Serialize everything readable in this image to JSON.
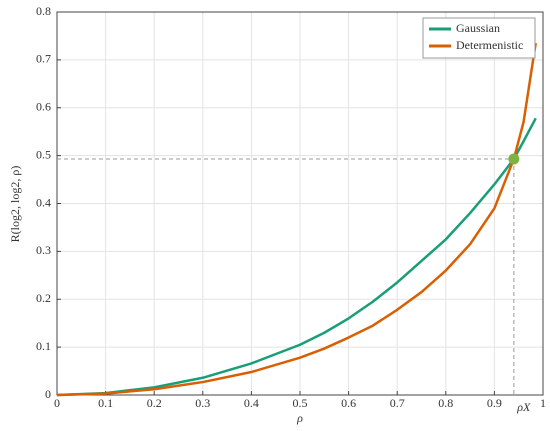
{
  "chart_data": {
    "type": "line",
    "xlabel": "ρ",
    "ylabel": "R(log2, log2, ρ)",
    "x": [
      0,
      0.1,
      0.2,
      0.3,
      0.4,
      0.5,
      0.55,
      0.6,
      0.65,
      0.7,
      0.75,
      0.8,
      0.85,
      0.9,
      0.94,
      0.96,
      0.985
    ],
    "series": [
      {
        "name": "Gaussian",
        "color": "#1a9e77",
        "values": [
          0,
          0.004,
          0.016,
          0.036,
          0.066,
          0.105,
          0.13,
          0.16,
          0.195,
          0.235,
          0.28,
          0.325,
          0.38,
          0.44,
          0.493,
          0.53,
          0.578
        ]
      },
      {
        "name": "Determenistic",
        "color": "#d95f02",
        "values": [
          0,
          0.003,
          0.012,
          0.027,
          0.048,
          0.078,
          0.097,
          0.12,
          0.145,
          0.178,
          0.215,
          0.26,
          0.315,
          0.39,
          0.493,
          0.57,
          0.735
        ]
      }
    ],
    "marker": {
      "x": 0.94,
      "y": 0.493,
      "label": "ρX",
      "color": "#7cb342"
    },
    "xlim": [
      0,
      1
    ],
    "xticks": [
      0,
      0.1,
      0.2,
      0.3,
      0.4,
      0.5,
      0.6,
      0.7,
      0.8,
      0.9,
      1
    ],
    "ylim": [
      0,
      0.8
    ],
    "yticks": [
      0,
      0.1,
      0.2,
      0.3,
      0.4,
      0.5,
      0.6,
      0.7,
      0.8
    ],
    "grid": true,
    "legend": "upper-right"
  }
}
